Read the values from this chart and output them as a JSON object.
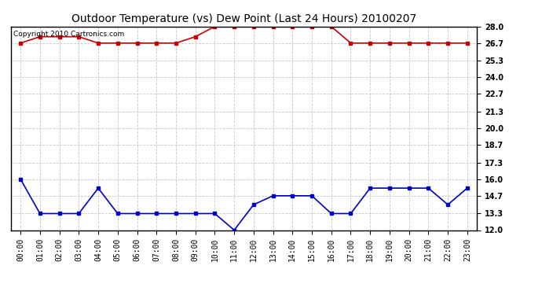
{
  "title": "Outdoor Temperature (vs) Dew Point (Last 24 Hours) 20100207",
  "copyright_text": "Copyright 2010 Cartronics.com",
  "x_labels": [
    "00:00",
    "01:00",
    "02:00",
    "03:00",
    "04:00",
    "05:00",
    "06:00",
    "07:00",
    "08:00",
    "09:00",
    "10:00",
    "11:00",
    "12:00",
    "13:00",
    "14:00",
    "15:00",
    "16:00",
    "17:00",
    "18:00",
    "19:00",
    "20:00",
    "21:00",
    "22:00",
    "23:00"
  ],
  "temp_data": [
    26.7,
    27.2,
    27.2,
    27.2,
    26.7,
    26.7,
    26.7,
    26.7,
    26.7,
    27.2,
    28.0,
    28.0,
    28.0,
    28.0,
    28.0,
    28.0,
    28.0,
    26.7,
    26.7,
    26.7,
    26.7,
    26.7,
    26.7,
    26.7
  ],
  "dew_data": [
    16.0,
    13.3,
    13.3,
    13.3,
    15.3,
    13.3,
    13.3,
    13.3,
    13.3,
    13.3,
    13.3,
    12.0,
    14.0,
    14.7,
    14.7,
    14.7,
    13.3,
    13.3,
    15.3,
    15.3,
    15.3,
    15.3,
    14.0,
    15.3
  ],
  "temp_color": "#cc0000",
  "dew_color": "#0000cc",
  "bg_color": "#ffffff",
  "grid_color": "#c8c8c8",
  "ylim": [
    12.0,
    28.0
  ],
  "yticks": [
    12.0,
    13.3,
    14.7,
    16.0,
    17.3,
    18.7,
    20.0,
    21.3,
    22.7,
    24.0,
    25.3,
    26.7,
    28.0
  ],
  "marker": "s",
  "marker_size": 3,
  "line_width": 1.2,
  "title_fontsize": 10,
  "copyright_fontsize": 6.5,
  "tick_fontsize": 7,
  "ytick_fontsize": 7
}
